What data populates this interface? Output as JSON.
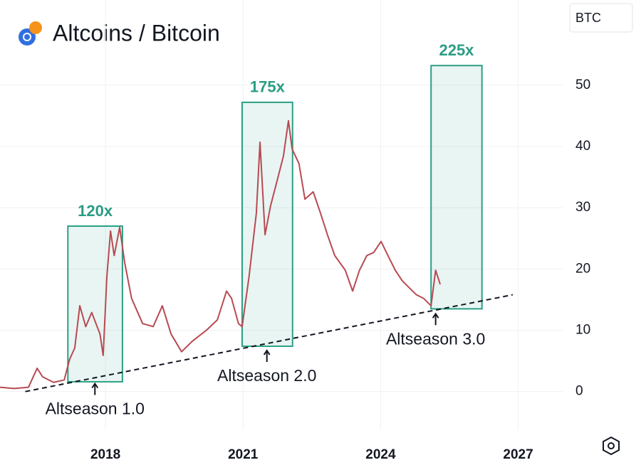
{
  "chart_data": {
    "type": "line",
    "title": "Altcoins / Bitcoin",
    "currency": "BTC",
    "grid": true,
    "xlim": [
      2015.7,
      2027.97
    ],
    "xticks": [
      2018,
      2021,
      2024,
      2027
    ],
    "ylim": [
      -6.3,
      63.9
    ],
    "yticks": [
      0,
      10,
      20,
      30,
      40,
      50
    ],
    "series": [
      {
        "color": "#b84a52",
        "x": [
          2015.7,
          2016.01,
          2016.32,
          2016.51,
          2016.63,
          2016.87,
          2017.1,
          2017.22,
          2017.33,
          2017.44,
          2017.57,
          2017.7,
          2017.88,
          2017.95,
          2018.03,
          2018.11,
          2018.19,
          2018.31,
          2018.42,
          2018.57,
          2018.81,
          2019.04,
          2019.24,
          2019.43,
          2019.66,
          2019.89,
          2020.2,
          2020.44,
          2020.64,
          2020.75,
          2020.9,
          2020.98,
          2021.13,
          2021.29,
          2021.37,
          2021.48,
          2021.6,
          2021.76,
          2021.88,
          2021.99,
          2022.07,
          2022.22,
          2022.35,
          2022.53,
          2022.69,
          2022.84,
          2023.0,
          2023.23,
          2023.39,
          2023.54,
          2023.7,
          2023.85,
          2024.01,
          2024.16,
          2024.32,
          2024.47,
          2024.63,
          2024.78,
          2024.94,
          2025.1,
          2025.2,
          2025.3
        ],
        "values": [
          0.7,
          0.5,
          0.7,
          3.8,
          2.4,
          1.5,
          1.9,
          5.3,
          7.1,
          14.0,
          10.6,
          12.9,
          9.4,
          5.9,
          18.7,
          26.2,
          22.2,
          26.8,
          21.0,
          15.2,
          11.1,
          10.6,
          14.0,
          9.4,
          6.5,
          8.2,
          10.0,
          11.7,
          16.4,
          15.2,
          11.1,
          10.6,
          18.7,
          29.1,
          40.7,
          25.6,
          30.3,
          34.9,
          38.4,
          44.2,
          39.6,
          37.2,
          31.4,
          32.6,
          29.1,
          25.6,
          22.2,
          19.8,
          16.4,
          19.8,
          22.2,
          22.7,
          24.5,
          22.2,
          19.8,
          18.1,
          16.9,
          15.8,
          15.2,
          14.0,
          19.8,
          17.5
        ]
      }
    ],
    "highlights": [
      {
        "label": "120x",
        "x": [
          2017.18,
          2018.37
        ],
        "y": [
          1.6,
          27.0
        ],
        "color": "#2aa085"
      },
      {
        "label": "175x",
        "x": [
          2020.98,
          2022.08
        ],
        "y": [
          7.4,
          47.2
        ],
        "color": "#2aa085"
      },
      {
        "label": "225x",
        "x": [
          2025.1,
          2026.21
        ],
        "y": [
          13.5,
          53.2
        ],
        "color": "#2aa085"
      }
    ],
    "trendline": {
      "x": [
        2016.25,
        2026.88
      ],
      "y": [
        0,
        15.8
      ]
    },
    "annotations": [
      {
        "text": "Altseason 1.0",
        "x": 2017.77,
        "y": 1.3
      },
      {
        "text": "Altseason 2.0",
        "x": 2021.52,
        "y": 6.7
      },
      {
        "text": "Altseason 3.0",
        "x": 2025.2,
        "y": 12.7
      }
    ]
  }
}
